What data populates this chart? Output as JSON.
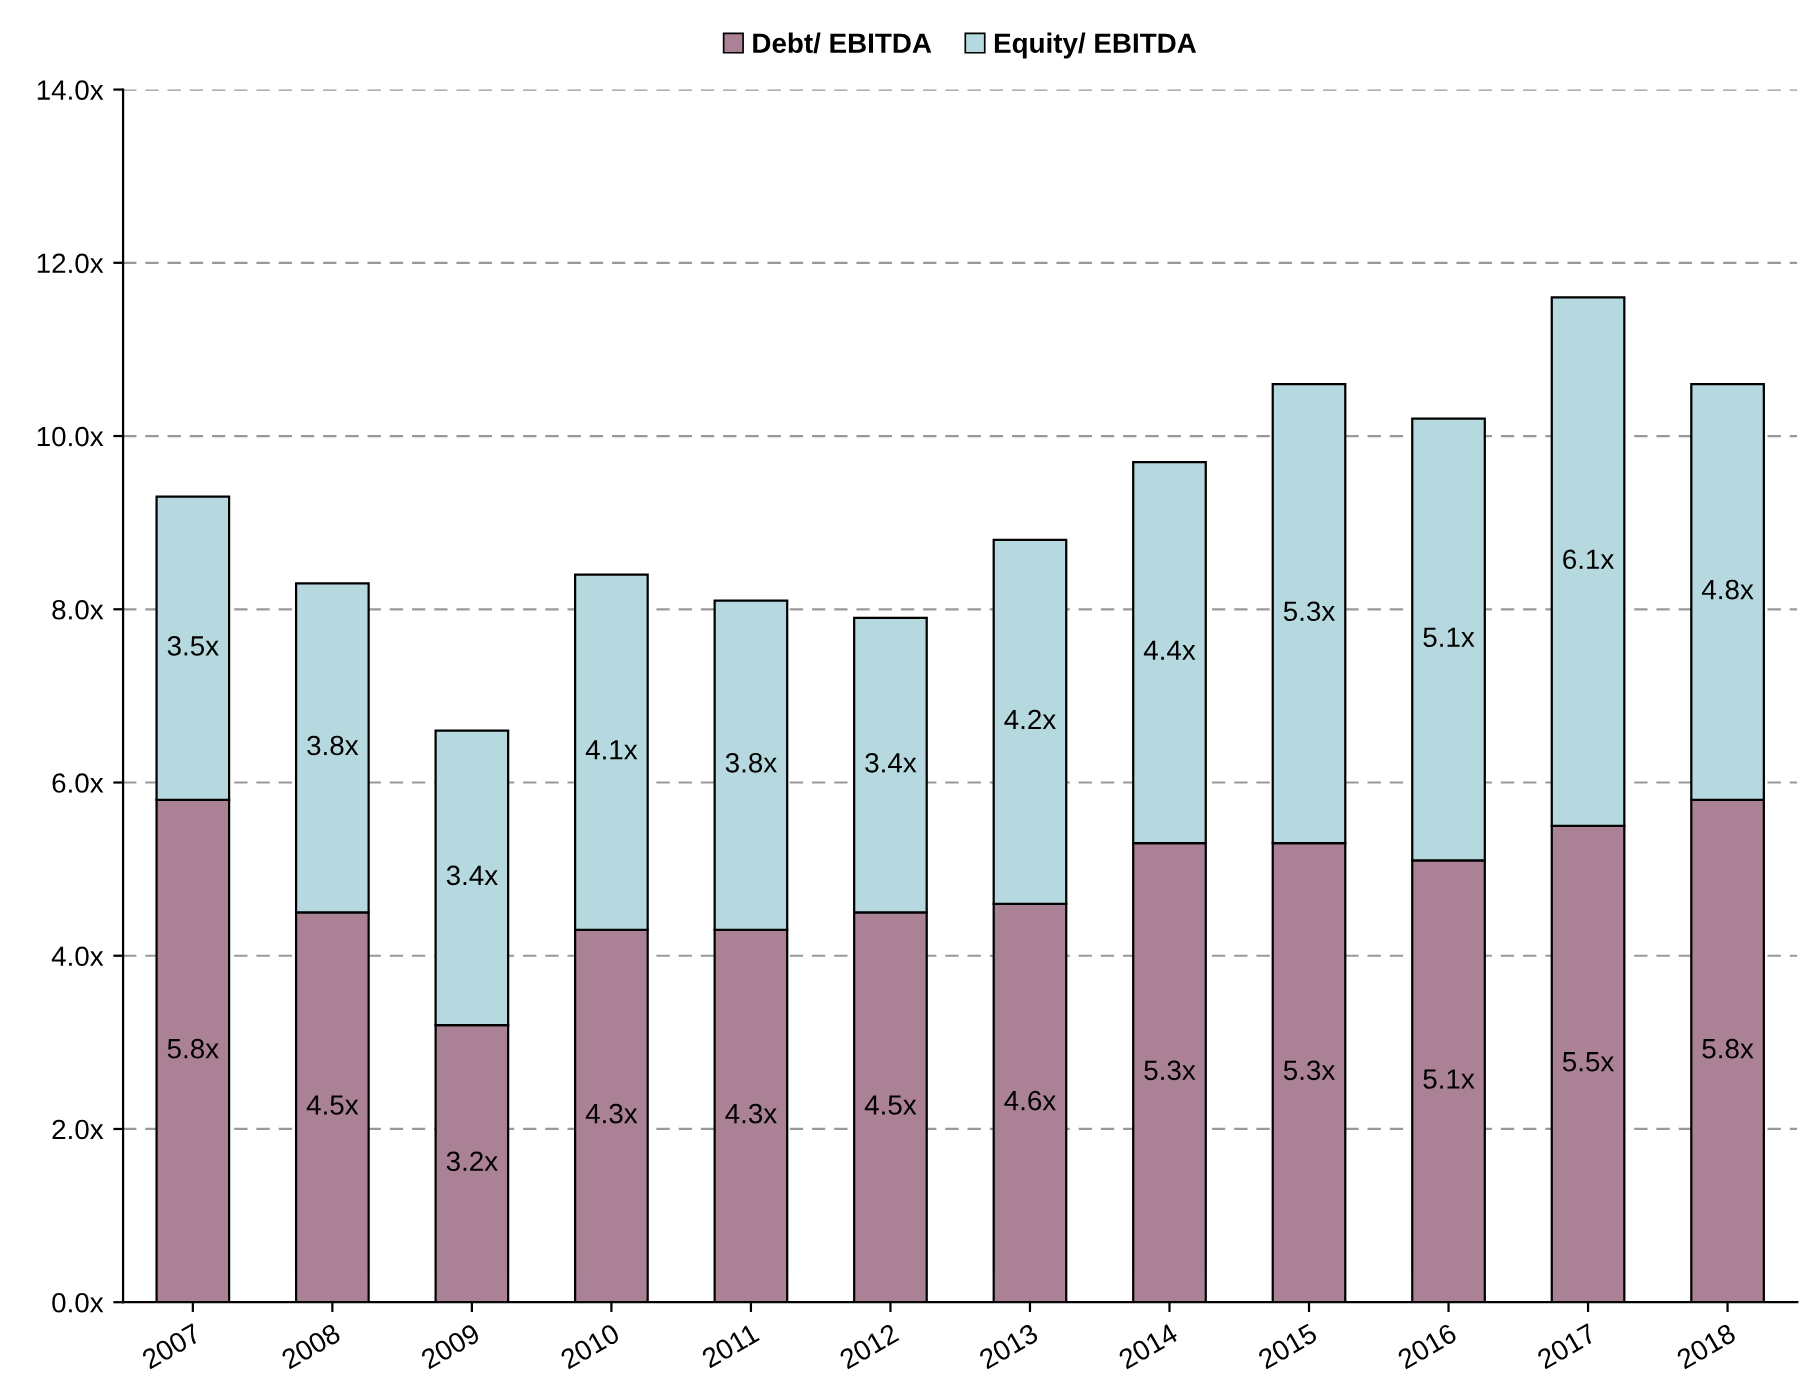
{
  "chart_data": {
    "type": "bar",
    "stacked": true,
    "categories": [
      "2007",
      "2008",
      "2009",
      "2010",
      "2011",
      "2012",
      "2013",
      "2014",
      "2015",
      "2016",
      "2017",
      "2018"
    ],
    "series": [
      {
        "name": "Debt/ EBITDA",
        "color": "#ab8195",
        "values": [
          5.8,
          4.5,
          3.2,
          4.3,
          4.3,
          4.5,
          4.6,
          5.3,
          5.3,
          5.1,
          5.5,
          5.8
        ],
        "value_labels": [
          "5.8x",
          "4.5x",
          "3.2x",
          "4.3x",
          "4.3x",
          "4.5x",
          "4.6x",
          "5.3x",
          "5.3x",
          "5.1x",
          "5.5x",
          "5.8x"
        ]
      },
      {
        "name": "Equity/ EBITDA",
        "color": "#b5d9de",
        "values": [
          3.5,
          3.8,
          3.4,
          4.1,
          3.8,
          3.4,
          4.2,
          4.4,
          5.3,
          5.1,
          6.1,
          4.8
        ],
        "value_labels": [
          "3.5x",
          "3.8x",
          "3.4x",
          "4.1x",
          "3.8x",
          "3.4x",
          "4.2x",
          "4.4x",
          "5.3x",
          "5.1x",
          "6.1x",
          "4.8x"
        ]
      }
    ],
    "ylim": [
      0,
      14
    ],
    "yticks": [
      {
        "value": 0,
        "label": "0.0x"
      },
      {
        "value": 2,
        "label": "2.0x"
      },
      {
        "value": 4,
        "label": "4.0x"
      },
      {
        "value": 6,
        "label": "6.0x"
      },
      {
        "value": 8,
        "label": "8.0x"
      },
      {
        "value": 10,
        "label": "10.0x"
      },
      {
        "value": 12,
        "label": "12.0x"
      },
      {
        "value": 14,
        "label": "14.0x"
      }
    ],
    "grid": "y",
    "line_style": "dashed",
    "legend": "top"
  }
}
